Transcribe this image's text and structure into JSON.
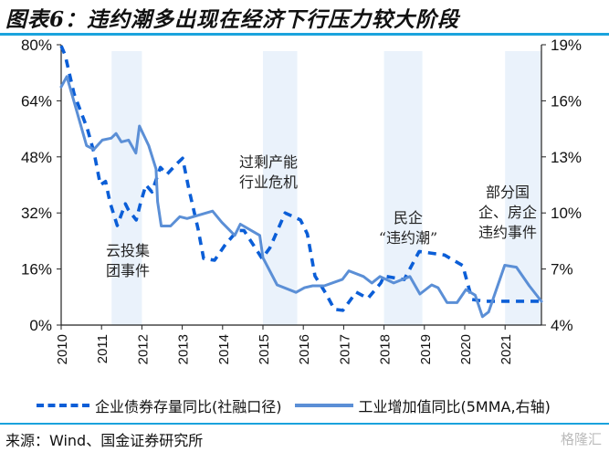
{
  "title": "图表6：违约潮多出现在经济下行压力较大阶段",
  "source": "来源：Wind、国金证券研究所",
  "watermark": "格隆汇",
  "chart_data": {
    "type": "line",
    "title": "图表6：违约潮多出现在经济下行压力较大阶段",
    "xlabel": "",
    "ylabel_left": "",
    "ylabel_right": "",
    "x_ticks": [
      "2010",
      "2011",
      "2012",
      "2013",
      "2014",
      "2015",
      "2016",
      "2017",
      "2018",
      "2019",
      "2020",
      "2021"
    ],
    "x_range": [
      2010,
      2021.9
    ],
    "y_left": {
      "range": [
        0,
        80
      ],
      "ticks": [
        "0%",
        "16%",
        "32%",
        "48%",
        "64%",
        "80%"
      ],
      "tick_values": [
        0,
        16,
        32,
        48,
        64,
        80
      ]
    },
    "y_right": {
      "range": [
        4,
        19
      ],
      "ticks": [
        "4%",
        "7%",
        "10%",
        "13%",
        "16%",
        "19%"
      ],
      "tick_values": [
        4,
        7,
        10,
        13,
        16,
        19
      ]
    },
    "grid": false,
    "legend_position": "bottom",
    "colors": {
      "bond": "#0b5ed7",
      "industry": "#5b8fd6",
      "band": "#eaf2fb"
    },
    "shaded_periods": [
      {
        "start": 2011.25,
        "end": 2012.0,
        "label": "云投集团事件",
        "label_lines": [
          "云投集",
          "团事件"
        ]
      },
      {
        "start": 2015.0,
        "end": 2015.85,
        "label": "过剩产能行业危机",
        "label_lines": [
          "过剩产能",
          "行业危机"
        ]
      },
      {
        "start": 2018.0,
        "end": 2018.95,
        "label": "民企“违约潮”",
        "label_lines": [
          "民企",
          "“违约潮”"
        ]
      },
      {
        "start": 2021.0,
        "end": 2021.9,
        "label": "部分国企、房企违约事件",
        "label_lines": [
          "部分国",
          "企、房企",
          "违约事件"
        ]
      }
    ],
    "series": [
      {
        "name": "企业债券存量同比(社融口径)",
        "axis": "left",
        "style": "dashed",
        "x": [
          2010.0,
          2010.1,
          2010.32,
          2010.65,
          2010.82,
          2010.97,
          2011.1,
          2011.21,
          2011.39,
          2011.59,
          2011.66,
          2011.86,
          2011.97,
          2012.1,
          2012.25,
          2012.46,
          2012.62,
          2012.86,
          2013.01,
          2013.16,
          2013.39,
          2013.53,
          2013.8,
          2014.07,
          2014.37,
          2014.53,
          2014.98,
          2015.17,
          2015.55,
          2015.93,
          2016.1,
          2016.29,
          2016.56,
          2016.77,
          2016.98,
          2017.31,
          2017.6,
          2017.92,
          2018.0,
          2018.5,
          2018.87,
          2019.5,
          2019.95,
          2020.18,
          2020.5,
          2020.83,
          2020.95,
          2021.34,
          2021.9
        ],
        "values": [
          79.7,
          77,
          66,
          56,
          49,
          40,
          41,
          35,
          28.4,
          34.6,
          33,
          30,
          35,
          40,
          38,
          45,
          43,
          46,
          47.6,
          39,
          27.6,
          19,
          18.5,
          23,
          27,
          27,
          19,
          22,
          32,
          30,
          26,
          14,
          9,
          4.5,
          4.2,
          9.4,
          7.6,
          12,
          14,
          13,
          21,
          20,
          17,
          7.3,
          6.8,
          6.8,
          6.8,
          6.8,
          6.8
        ]
      },
      {
        "name": "工业增加值同比(5MMA,右轴)",
        "axis": "right",
        "style": "solid",
        "x": [
          2010.0,
          2010.14,
          2010.34,
          2010.63,
          2010.81,
          2011.02,
          2011.24,
          2011.36,
          2011.49,
          2011.67,
          2011.85,
          2011.94,
          2012.17,
          2012.35,
          2012.39,
          2012.48,
          2012.71,
          2012.94,
          2013.12,
          2013.75,
          2013.98,
          2014.3,
          2014.44,
          2014.92,
          2015.0,
          2015.35,
          2015.82,
          2016.03,
          2016.23,
          2016.52,
          2016.97,
          2017.13,
          2017.49,
          2017.7,
          2017.9,
          2018.24,
          2018.64,
          2018.89,
          2019.18,
          2019.34,
          2019.56,
          2019.81,
          2020.03,
          2020.26,
          2020.44,
          2020.59,
          2020.99,
          2021.28,
          2021.6,
          2021.9
        ],
        "values": [
          16.75,
          17.3,
          15.8,
          13.6,
          13.4,
          13.9,
          14.0,
          14.25,
          13.8,
          13.9,
          13.2,
          14.65,
          13.6,
          12.35,
          10.6,
          9.3,
          9.3,
          9.8,
          9.7,
          10.1,
          9.5,
          8.8,
          9.4,
          8.8,
          7.6,
          6.15,
          5.75,
          6.0,
          6.1,
          6.1,
          6.45,
          6.9,
          6.6,
          6.25,
          6.6,
          6.25,
          6.6,
          5.66,
          6.15,
          6.0,
          5.2,
          5.2,
          5.9,
          5.6,
          4.45,
          4.7,
          7.2,
          7.1,
          6.1,
          5.27
        ]
      }
    ]
  }
}
